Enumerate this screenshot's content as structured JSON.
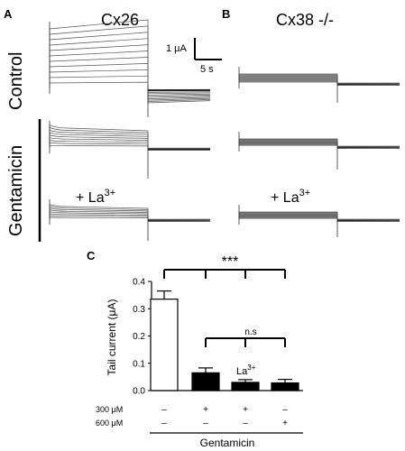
{
  "panels": {
    "A": {
      "letter": "A",
      "title": "Cx26"
    },
    "B": {
      "letter": "B",
      "title": "Cx38 -/-"
    },
    "C": {
      "letter": "C"
    }
  },
  "rows": {
    "control": "Control",
    "gentamicin": "Gentamicin"
  },
  "scale_bar": {
    "current": "1 μA",
    "time": "5 s"
  },
  "lanthanum": {
    "prefix": "+ La",
    "sup": "3+",
    "bar_label": "La",
    "bar_sup": "3+"
  },
  "chart_data": {
    "type": "bar",
    "ylabel": "Tail current (μA)",
    "ylim": [
      0,
      0.4
    ],
    "yticks": [
      "0.0",
      "0.1",
      "0.2",
      "0.3",
      "0.4"
    ],
    "values": [
      0.335,
      0.065,
      0.03,
      0.028
    ],
    "errors": [
      0.03,
      0.018,
      0.01,
      0.013
    ],
    "fills": [
      "#ffffff",
      "#000000",
      "#000000",
      "#000000"
    ],
    "conditions": [
      {
        "label": "300 μM",
        "marks": [
          "–",
          "+",
          "+",
          "–"
        ]
      },
      {
        "label": "600 μM",
        "marks": [
          "–",
          "–",
          "–",
          "+"
        ]
      }
    ],
    "xlabel": "Gentamicin",
    "significance": [
      {
        "label": "***",
        "from": 0,
        "to": [
          1,
          2,
          3
        ]
      },
      {
        "label": "n.s",
        "from": 1,
        "to": [
          2,
          3
        ]
      }
    ]
  },
  "colors": {
    "trace": "#555555",
    "axis": "#000000"
  }
}
